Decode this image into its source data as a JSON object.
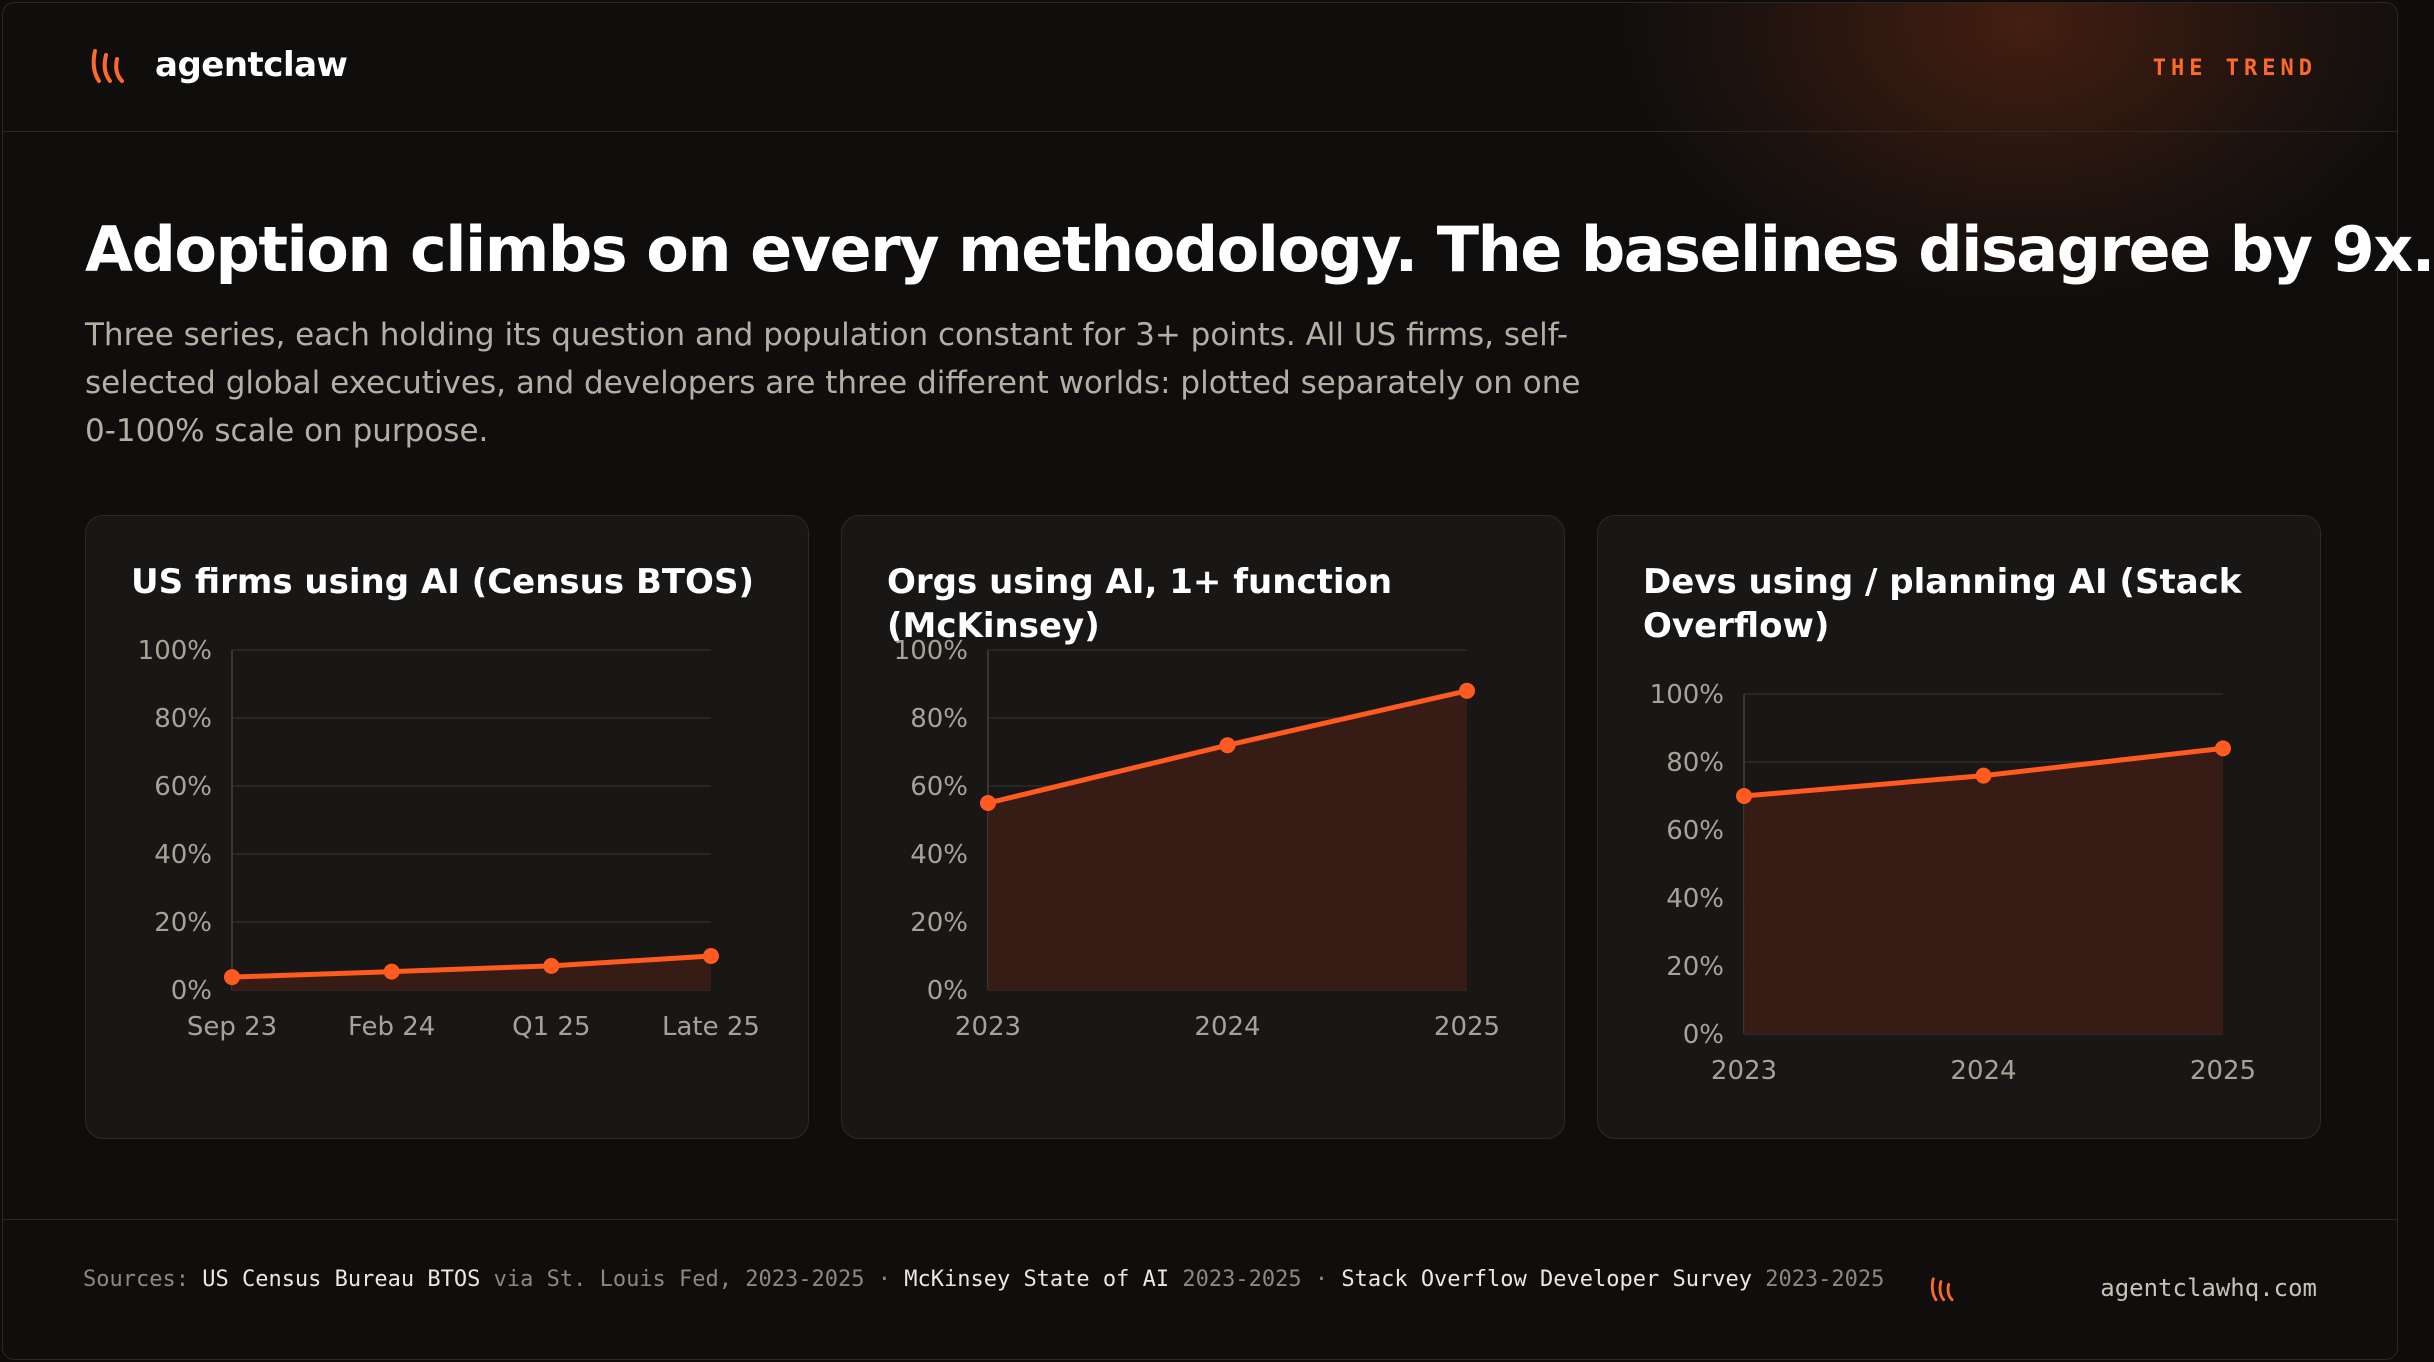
{
  "brand": {
    "name": "agentclaw",
    "site": "agentclawhq.com"
  },
  "header": {
    "kicker": "THE TREND"
  },
  "headline": "Adoption climbs on every methodology. The baselines disagree by 9x.",
  "subhead": "Three series, each holding its question and population constant for 3+ points. All US firms, self-selected global executives, and developers are three different worlds: plotted separately on one 0-100% scale on purpose.",
  "colors": {
    "accent": "#ff5a1f",
    "area": "#3a1d14",
    "grid": "#2e2b28",
    "tick": "#a9a198"
  },
  "chart_data": [
    {
      "type": "line",
      "title": "US firms using AI (Census BTOS)",
      "categories": [
        "Sep 23",
        "Feb 24",
        "Q1 25",
        "Late 25"
      ],
      "values": [
        3.8,
        5.4,
        7.1,
        10
      ],
      "ylim": [
        0,
        100
      ],
      "yticks": [
        "0%",
        "20%",
        "40%",
        "60%",
        "80%",
        "100%"
      ],
      "grid": true
    },
    {
      "type": "area",
      "title": "Orgs using AI, 1+ function (McKinsey)",
      "categories": [
        "2023",
        "2024",
        "2025"
      ],
      "values": [
        55,
        72,
        88
      ],
      "ylim": [
        0,
        100
      ],
      "yticks": [
        "0%",
        "20%",
        "40%",
        "60%",
        "80%",
        "100%"
      ],
      "grid": true
    },
    {
      "type": "area",
      "title": "Devs using / planning AI (Stack Overflow)",
      "categories": [
        "2023",
        "2024",
        "2025"
      ],
      "values": [
        70,
        76,
        84
      ],
      "ylim": [
        0,
        100
      ],
      "yticks": [
        "0%",
        "20%",
        "40%",
        "60%",
        "80%",
        "100%"
      ],
      "grid": true
    }
  ],
  "footer": {
    "label": "Sources:",
    "parts": [
      {
        "name": "US Census Bureau BTOS",
        "detail": " via St. Louis Fed, 2023-2025"
      },
      {
        "name": "McKinsey State of AI",
        "detail": " 2023-2025"
      },
      {
        "name": "Stack Overflow Developer Survey",
        "detail": " 2023-2025"
      }
    ],
    "separator": " · "
  }
}
